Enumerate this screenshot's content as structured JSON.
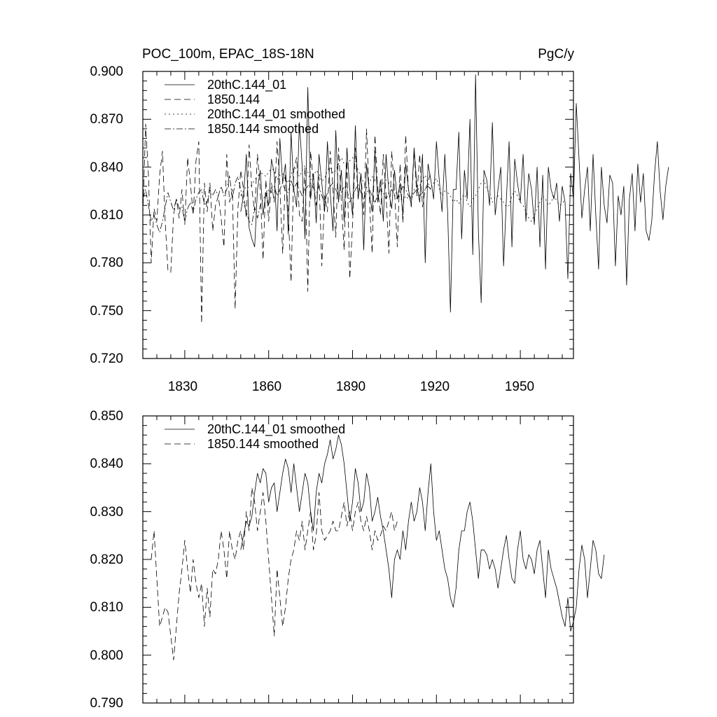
{
  "chart_data": [
    {
      "type": "line",
      "title": "POC_100m, EPAC_18S-18N",
      "units": "PgC/y",
      "xlim": [
        1815,
        1969
      ],
      "ylim": [
        0.72,
        0.9
      ],
      "yticks": [
        "0.720",
        "0.750",
        "0.780",
        "0.810",
        "0.840",
        "0.870",
        "0.900"
      ],
      "xticks": [
        "1830",
        "1860",
        "1890",
        "1920",
        "1950"
      ],
      "legend": [
        "20thC.144_01",
        "1850.144",
        "20thC.144_01 smoothed",
        "1850.144 smoothed"
      ],
      "series": [
        {
          "name": "20thC.144_01",
          "style": "solid",
          "x_start": 1850,
          "values": [
            0.812,
            0.822,
            0.848,
            0.802,
            0.795,
            0.79,
            0.826,
            0.838,
            0.81,
            0.824,
            0.816,
            0.845,
            0.836,
            0.8,
            0.858,
            0.83,
            0.842,
            0.798,
            0.862,
            0.826,
            0.815,
            0.868,
            0.84,
            0.795,
            0.89,
            0.82,
            0.836,
            0.805,
            0.848,
            0.83,
            0.812,
            0.856,
            0.824,
            0.8,
            0.863,
            0.818,
            0.838,
            0.806,
            0.852,
            0.826,
            0.81,
            0.866,
            0.82,
            0.836,
            0.788,
            0.842,
            0.824,
            0.812,
            0.85,
            0.818,
            0.832,
            0.806,
            0.848,
            0.824,
            0.814,
            0.838,
            0.82,
            0.83,
            0.81,
            0.842,
            0.826,
            0.816,
            0.852,
            0.828,
            0.818,
            0.848,
            0.78,
            0.842,
            0.832,
            0.82,
            0.856,
            0.832,
            0.812,
            0.848,
            0.812,
            0.749,
            0.826,
            0.826,
            0.862,
            0.795,
            0.838,
            0.82,
            0.87,
            0.785,
            0.898,
            0.8,
            0.755,
            0.838,
            0.832,
            0.816,
            0.868,
            0.81,
            0.826,
            0.84,
            0.778,
            0.82,
            0.856,
            0.79,
            0.845,
            0.83,
            0.818,
            0.848,
            0.806,
            0.836,
            0.826,
            0.804,
            0.84,
            0.79,
            0.835,
            0.776,
            0.84,
            0.826,
            0.82,
            0.83,
            0.806,
            0.828,
            0.818,
            0.77,
            0.836,
            0.82,
            0.88,
            0.845,
            0.808,
            0.826,
            0.84,
            0.8,
            0.848,
            0.81,
            0.776,
            0.84,
            0.816,
            0.805,
            0.835,
            0.83,
            0.778,
            0.822,
            0.81,
            0.828,
            0.766,
            0.82,
            0.836,
            0.8,
            0.842,
            0.818,
            0.836,
            0.8,
            0.794,
            0.806,
            0.836,
            0.856,
            0.825,
            0.807,
            0.828,
            0.84
          ]
        },
        {
          "name": "1850.144",
          "style": "dashed",
          "x_start": 1815,
          "values": [
            0.81,
            0.867,
            0.835,
            0.78,
            0.814,
            0.806,
            0.835,
            0.85,
            0.806,
            0.775,
            0.774,
            0.81,
            0.82,
            0.808,
            0.826,
            0.804,
            0.846,
            0.83,
            0.81,
            0.844,
            0.856,
            0.742,
            0.83,
            0.812,
            0.83,
            0.8,
            0.816,
            0.822,
            0.808,
            0.79,
            0.848,
            0.818,
            0.826,
            0.751,
            0.814,
            0.838,
            0.826,
            0.808,
            0.854,
            0.826,
            0.812,
            0.848,
            0.826,
            0.782,
            0.832,
            0.806,
            0.83,
            0.818,
            0.856,
            0.828,
            0.786,
            0.836,
            0.812,
            0.768,
            0.838,
            0.846,
            0.81,
            0.806,
            0.84,
            0.762,
            0.85,
            0.83,
            0.816,
            0.834,
            0.778,
            0.822,
            0.812,
            0.85,
            0.826,
            0.796,
            0.852,
            0.818,
            0.788,
            0.844,
            0.77,
            0.804,
            0.852,
            0.82,
            0.836,
            0.81,
            0.864,
            0.82,
            0.786,
            0.86,
            0.826,
            0.81,
            0.848,
            0.822,
            0.786,
            0.85,
            0.826,
            0.79,
            0.842,
            0.805,
            0.86,
            0.826,
            0.815,
            0.85,
            0.822,
            0.848,
            0.815,
            0.826,
            0.83,
            0.838
          ]
        },
        {
          "name": "20thC.144_01 smoothed",
          "style": "dotted",
          "x_start": 1850,
          "values": [
            0.822,
            0.825,
            0.828,
            0.827,
            0.829,
            0.832,
            0.834,
            0.836,
            0.836,
            0.834,
            0.837,
            0.839,
            0.838,
            0.832,
            0.835,
            0.836,
            0.832,
            0.83,
            0.835,
            0.84,
            0.839,
            0.834,
            0.838,
            0.841,
            0.837,
            0.832,
            0.834,
            0.838,
            0.836,
            0.831,
            0.833,
            0.838,
            0.84,
            0.836,
            0.838,
            0.842,
            0.846,
            0.842,
            0.84,
            0.844,
            0.846,
            0.843,
            0.838,
            0.834,
            0.83,
            0.827,
            0.83,
            0.834,
            0.832,
            0.829,
            0.828,
            0.83,
            0.832,
            0.83,
            0.827,
            0.825,
            0.823,
            0.821,
            0.818,
            0.822,
            0.82,
            0.822,
            0.826,
            0.824,
            0.828,
            0.832,
            0.835,
            0.83,
            0.826,
            0.83,
            0.833,
            0.827,
            0.822,
            0.825,
            0.824,
            0.822,
            0.818,
            0.82,
            0.817,
            0.821,
            0.823,
            0.818,
            0.815,
            0.82,
            0.822,
            0.826,
            0.83,
            0.832,
            0.826,
            0.824,
            0.818,
            0.821,
            0.822,
            0.82,
            0.818,
            0.815,
            0.816,
            0.822,
            0.825,
            0.822,
            0.818,
            0.816,
            0.812,
            0.808,
            0.806,
            0.81,
            0.814,
            0.818,
            0.822,
            0.82,
            0.816,
            0.818,
            0.822,
            0.819,
            0.816,
            0.817,
            0.82
          ]
        },
        {
          "name": "1850.144 smoothed",
          "style": "dashdot",
          "x_start": 1815,
          "values": [
            0.82,
            0.826,
            0.816,
            0.806,
            0.81,
            0.804,
            0.799,
            0.806,
            0.815,
            0.824,
            0.818,
            0.813,
            0.82,
            0.814,
            0.815,
            0.806,
            0.814,
            0.818,
            0.812,
            0.82,
            0.824,
            0.826,
            0.816,
            0.818,
            0.826,
            0.822,
            0.826,
            0.822,
            0.828,
            0.822,
            0.826,
            0.835,
            0.82,
            0.83,
            0.834,
            0.826,
            0.818,
            0.812,
            0.806,
            0.804,
            0.815,
            0.808,
            0.816,
            0.82,
            0.822,
            0.826,
            0.824,
            0.828,
            0.822,
            0.826,
            0.83,
            0.825,
            0.824,
            0.832,
            0.826,
            0.83,
            0.826,
            0.822,
            0.826,
            0.828,
            0.83,
            0.827,
            0.824,
            0.828,
            0.822,
            0.818,
            0.824,
            0.828,
            0.83,
            0.826,
            0.822,
            0.824,
            0.828,
            0.826,
            0.818,
            0.822,
            0.826,
            0.829,
            0.824,
            0.82,
            0.824,
            0.826,
            0.822,
            0.818,
            0.822,
            0.826,
            0.824,
            0.82,
            0.824,
            0.826,
            0.822,
            0.82,
            0.824,
            0.828,
            0.826,
            0.822,
            0.82,
            0.824,
            0.826,
            0.822,
            0.824,
            0.826,
            0.828,
            0.826
          ]
        }
      ]
    },
    {
      "type": "line",
      "xlim": [
        1815,
        1969
      ],
      "ylim": [
        0.79,
        0.85
      ],
      "yticks": [
        "0.790",
        "0.800",
        "0.810",
        "0.820",
        "0.830",
        "0.840",
        "0.850"
      ],
      "legend": [
        "20thC.144_01 smoothed",
        "1850.144 smoothed"
      ],
      "series": [
        {
          "name": "20thC.144_01 smoothed",
          "style": "solid",
          "x_start": 1850,
          "values": [
            0.822,
            0.825,
            0.828,
            0.827,
            0.829,
            0.834,
            0.838,
            0.836,
            0.839,
            0.838,
            0.832,
            0.835,
            0.836,
            0.83,
            0.834,
            0.838,
            0.841,
            0.839,
            0.834,
            0.84,
            0.835,
            0.83,
            0.834,
            0.838,
            0.836,
            0.83,
            0.826,
            0.834,
            0.838,
            0.836,
            0.84,
            0.842,
            0.845,
            0.841,
            0.843,
            0.846,
            0.844,
            0.84,
            0.834,
            0.828,
            0.832,
            0.839,
            0.836,
            0.83,
            0.832,
            0.838,
            0.835,
            0.828,
            0.83,
            0.833,
            0.829,
            0.826,
            0.822,
            0.818,
            0.812,
            0.82,
            0.822,
            0.82,
            0.826,
            0.822,
            0.828,
            0.832,
            0.828,
            0.83,
            0.835,
            0.832,
            0.826,
            0.834,
            0.84,
            0.83,
            0.824,
            0.826,
            0.822,
            0.818,
            0.816,
            0.812,
            0.81,
            0.814,
            0.822,
            0.826,
            0.826,
            0.83,
            0.832,
            0.828,
            0.822,
            0.816,
            0.822,
            0.822,
            0.821,
            0.818,
            0.82,
            0.818,
            0.814,
            0.818,
            0.822,
            0.825,
            0.82,
            0.816,
            0.815,
            0.822,
            0.826,
            0.82,
            0.818,
            0.821,
            0.82,
            0.817,
            0.822,
            0.824,
            0.818,
            0.812,
            0.822,
            0.818,
            0.816,
            0.814,
            0.811,
            0.808,
            0.806,
            0.812,
            0.805,
            0.807,
            0.81,
            0.818,
            0.823,
            0.82,
            0.812,
            0.818,
            0.824,
            0.822,
            0.817,
            0.816,
            0.821
          ]
        },
        {
          "name": "1850.144 smoothed",
          "style": "dashed",
          "x_start": 1818,
          "values": [
            0.82,
            0.826,
            0.816,
            0.806,
            0.808,
            0.81,
            0.809,
            0.804,
            0.799,
            0.806,
            0.813,
            0.818,
            0.824,
            0.818,
            0.813,
            0.82,
            0.815,
            0.812,
            0.815,
            0.806,
            0.814,
            0.808,
            0.818,
            0.817,
            0.82,
            0.826,
            0.822,
            0.816,
            0.826,
            0.822,
            0.82,
            0.824,
            0.826,
            0.822,
            0.83,
            0.826,
            0.835,
            0.832,
            0.826,
            0.83,
            0.834,
            0.828,
            0.82,
            0.812,
            0.804,
            0.818,
            0.812,
            0.806,
            0.81,
            0.816,
            0.82,
            0.822,
            0.826,
            0.824,
            0.828,
            0.822,
            0.826,
            0.83,
            0.822,
            0.825,
            0.834,
            0.826,
            0.824,
            0.825,
            0.826,
            0.828,
            0.826,
            0.826,
            0.829,
            0.832,
            0.827,
            0.83,
            0.826,
            0.83,
            0.832,
            0.828,
            0.826,
            0.829,
            0.826,
            0.822,
            0.826,
            0.824,
            0.825,
            0.827,
            0.826,
            0.828,
            0.83,
            0.826,
            0.828
          ]
        }
      ]
    }
  ]
}
